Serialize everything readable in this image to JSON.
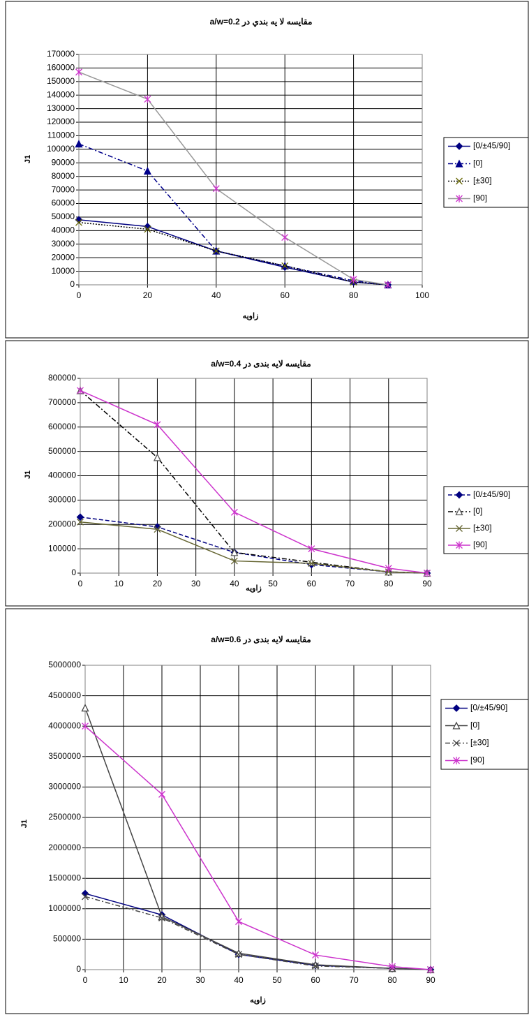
{
  "chart_data": [
    {
      "type": "line",
      "title": "مقایسه لا یه بندي در a/w=0.2",
      "x_label": "زاویه",
      "y_label": "J1",
      "x": [
        0,
        20,
        40,
        60,
        80,
        90
      ],
      "xlim": [
        0,
        100
      ],
      "xticks": [
        0,
        20,
        40,
        60,
        80,
        100
      ],
      "ylim": [
        0,
        170000
      ],
      "yticks": [
        0,
        10000,
        20000,
        30000,
        40000,
        50000,
        60000,
        70000,
        80000,
        90000,
        100000,
        110000,
        120000,
        130000,
        140000,
        150000,
        160000,
        170000
      ],
      "grid": true,
      "legend": "right",
      "series": [
        {
          "name": "[0/±45/90]",
          "color": "#000080",
          "marker_color": "#000080",
          "marker": "diamond",
          "dash": "solid",
          "values": [
            48000,
            43000,
            25000,
            13000,
            2000,
            0
          ]
        },
        {
          "name": "[0]",
          "color": "#00008b",
          "marker_color": "#00008b",
          "marker": "triangle",
          "dash": "dashdot",
          "values": [
            104000,
            84000,
            25000,
            14000,
            3000,
            0
          ]
        },
        {
          "name": "[±30]",
          "color": "#000000",
          "marker_color": "#666600",
          "marker": "x",
          "dash": "dot",
          "values": [
            46000,
            41000,
            25000,
            14000,
            2000,
            0
          ]
        },
        {
          "name": "[90]",
          "color": "#999999",
          "marker_color": "#cc33cc",
          "marker": "asterisk",
          "dash": "solid",
          "values": [
            157000,
            137000,
            71000,
            35000,
            4000,
            0
          ]
        }
      ]
    },
    {
      "type": "line",
      "title": "مقایسه لایه بندی در a/w=0.4",
      "x_label": "زاویه",
      "y_label": "J1",
      "x": [
        0,
        20,
        40,
        60,
        80,
        90
      ],
      "xlim": [
        0,
        90
      ],
      "xticks": [
        0,
        10,
        20,
        30,
        40,
        50,
        60,
        70,
        80,
        90
      ],
      "ylim": [
        0,
        800000
      ],
      "yticks": [
        0,
        100000,
        200000,
        300000,
        400000,
        500000,
        600000,
        700000,
        800000
      ],
      "grid": true,
      "legend": "right",
      "series": [
        {
          "name": "[0/±45/90]",
          "color": "#000080",
          "marker_color": "#000080",
          "marker": "diamond",
          "dash": "dash",
          "values": [
            230000,
            190000,
            85000,
            35000,
            5000,
            0
          ]
        },
        {
          "name": "[0]",
          "color": "#000000",
          "marker_color": "#555555",
          "marker": "triangle-open",
          "dash": "dashdot",
          "values": [
            750000,
            475000,
            85000,
            45000,
            5000,
            0
          ]
        },
        {
          "name": "[±30]",
          "color": "#666633",
          "marker_color": "#666633",
          "marker": "x",
          "dash": "solid",
          "values": [
            210000,
            180000,
            50000,
            40000,
            5000,
            0
          ]
        },
        {
          "name": "[90]",
          "color": "#cc33cc",
          "marker_color": "#cc33cc",
          "marker": "asterisk",
          "dash": "solid",
          "values": [
            750000,
            610000,
            250000,
            100000,
            20000,
            0
          ]
        }
      ]
    },
    {
      "type": "line",
      "title": "مقایسه لایه بندی در a/w=0.6",
      "x_label": "زاویه",
      "y_label": "J1",
      "x": [
        0,
        20,
        40,
        60,
        80,
        90
      ],
      "xlim": [
        0,
        90
      ],
      "xticks": [
        0,
        10,
        20,
        30,
        40,
        50,
        60,
        70,
        80,
        90
      ],
      "ylim": [
        0,
        5000000
      ],
      "yticks": [
        0,
        500000,
        1000000,
        1500000,
        2000000,
        2500000,
        3000000,
        3500000,
        4000000,
        4500000,
        5000000
      ],
      "grid": true,
      "legend": "right",
      "series": [
        {
          "name": "[0/±45/90]",
          "color": "#000080",
          "marker_color": "#000080",
          "marker": "diamond",
          "dash": "solid",
          "values": [
            1250000,
            900000,
            250000,
            70000,
            20000,
            0
          ]
        },
        {
          "name": "[0]",
          "color": "#444444",
          "marker_color": "#444444",
          "marker": "triangle-open",
          "dash": "solid",
          "values": [
            4300000,
            870000,
            270000,
            80000,
            20000,
            0
          ]
        },
        {
          "name": "[±30]",
          "color": "#444444",
          "marker_color": "#444444",
          "marker": "x",
          "dash": "dashdot",
          "values": [
            1200000,
            850000,
            250000,
            60000,
            20000,
            0
          ]
        },
        {
          "name": "[90]",
          "color": "#cc33cc",
          "marker_color": "#cc33cc",
          "marker": "asterisk",
          "dash": "solid",
          "values": [
            4000000,
            2880000,
            790000,
            240000,
            50000,
            0
          ]
        }
      ]
    }
  ]
}
